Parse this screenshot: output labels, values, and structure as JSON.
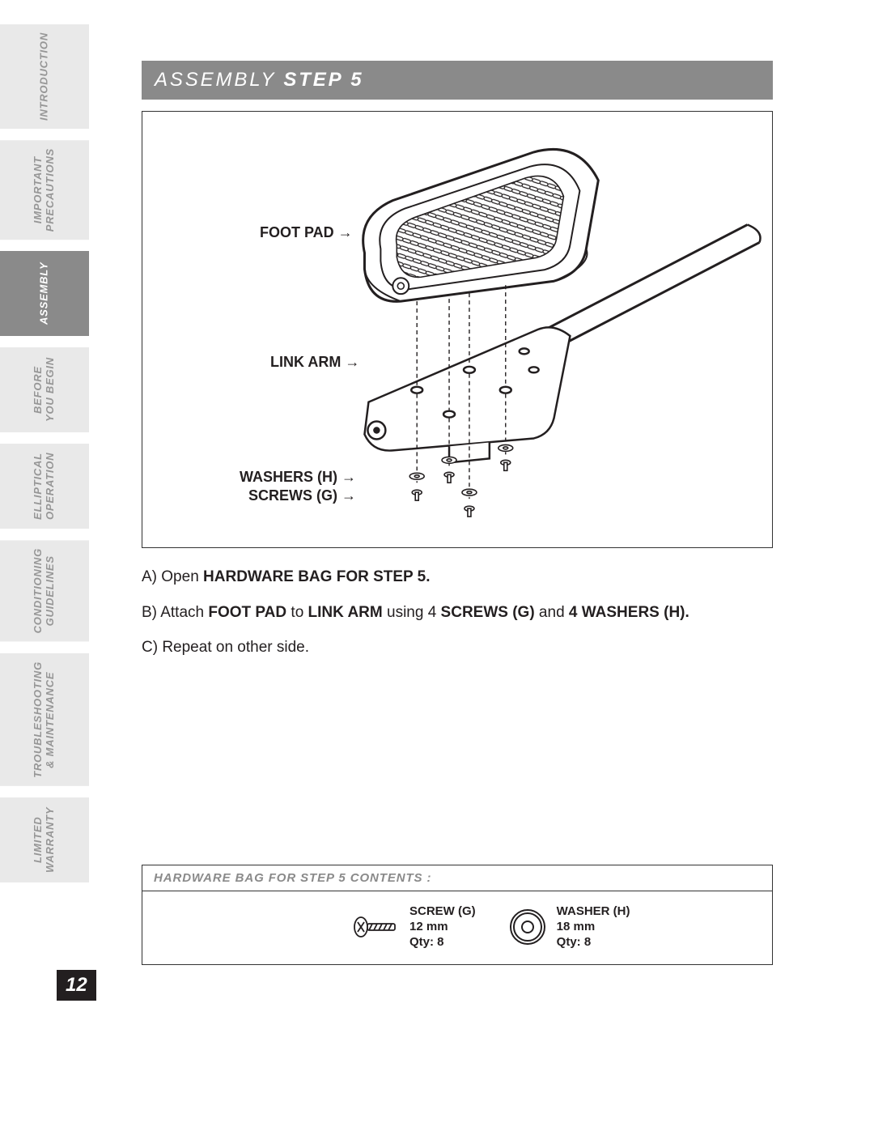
{
  "sidebar": {
    "tabs": [
      {
        "label": "INTRODUCTION",
        "active": false
      },
      {
        "label": "IMPORTANT\nPRECAUTIONS",
        "active": false
      },
      {
        "label": "ASSEMBLY",
        "active": true
      },
      {
        "label": "BEFORE\nYOU BEGIN",
        "active": false
      },
      {
        "label": "ELLIPTICAL\nOPERATION",
        "active": false
      },
      {
        "label": "CONDITIONING\nGUIDELINES",
        "active": false
      },
      {
        "label": "TROUBLESHOOTING\n& MAINTENANCE",
        "active": false
      },
      {
        "label": "LIMITED\nWARRANTY",
        "active": false
      }
    ]
  },
  "header": {
    "light": "ASSEMBLY ",
    "bold": "STEP 5"
  },
  "diagram": {
    "callouts": {
      "footpad": "FOOT PAD",
      "linkarm": "LINK ARM",
      "washers": "WASHERS (H)",
      "screws": "SCREWS (G)"
    }
  },
  "instructions": {
    "a_pre": "A) Open ",
    "a_b": "HARDWARE BAG FOR STEP 5.",
    "b_1": "B) Attach ",
    "b_b1": "FOOT PAD",
    "b_2": " to ",
    "b_b2": "LINK ARM",
    "b_3": " using 4 ",
    "b_b3": "SCREWS (G)",
    "b_4": " and ",
    "b_b4": "4 WASHERS (H).",
    "c": "C) Repeat on other side."
  },
  "hardware": {
    "title": "HARDWARE BAG FOR STEP 5 CONTENTS :",
    "screw": {
      "name": "SCREW (G)",
      "size": "12 mm",
      "qty": "Qty: 8"
    },
    "washer": {
      "name": "WASHER (H)",
      "size": "18 mm",
      "qty": "Qty: 8"
    }
  },
  "page": "12",
  "colors": {
    "tab_bg": "#e9e9e9",
    "tab_fg": "#969696",
    "tab_active_bg": "#8a8a8a",
    "tab_active_fg": "#ffffff",
    "header_bg": "#8a8a8a",
    "text": "#231f20"
  }
}
